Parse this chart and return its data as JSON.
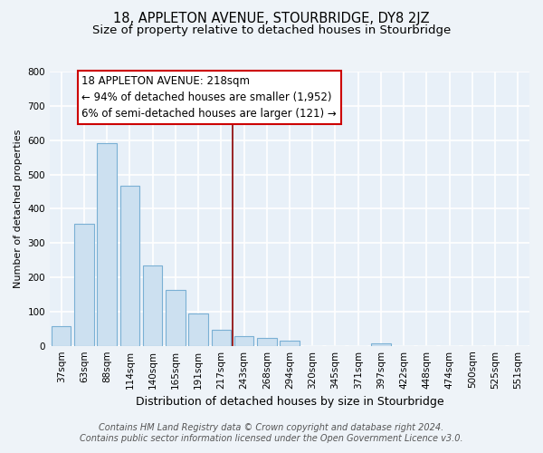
{
  "title": "18, APPLETON AVENUE, STOURBRIDGE, DY8 2JZ",
  "subtitle": "Size of property relative to detached houses in Stourbridge",
  "xlabel": "Distribution of detached houses by size in Stourbridge",
  "ylabel": "Number of detached properties",
  "bar_labels": [
    "37sqm",
    "63sqm",
    "88sqm",
    "114sqm",
    "140sqm",
    "165sqm",
    "191sqm",
    "217sqm",
    "243sqm",
    "268sqm",
    "294sqm",
    "320sqm",
    "345sqm",
    "371sqm",
    "397sqm",
    "422sqm",
    "448sqm",
    "474sqm",
    "500sqm",
    "525sqm",
    "551sqm"
  ],
  "bar_values": [
    58,
    355,
    590,
    468,
    235,
    163,
    95,
    48,
    27,
    22,
    15,
    0,
    0,
    0,
    8,
    0,
    0,
    0,
    0,
    0,
    0
  ],
  "bar_color": "#cce0f0",
  "bar_edge_color": "#7ab0d4",
  "vline_color": "#8b0000",
  "annotation_title": "18 APPLETON AVENUE: 218sqm",
  "annotation_line1": "← 94% of detached houses are smaller (1,952)",
  "annotation_line2": "6% of semi-detached houses are larger (121) →",
  "annotation_box_facecolor": "#ffffff",
  "annotation_box_edgecolor": "#cc0000",
  "ylim": [
    0,
    800
  ],
  "yticks": [
    0,
    100,
    200,
    300,
    400,
    500,
    600,
    700,
    800
  ],
  "footer_line1": "Contains HM Land Registry data © Crown copyright and database right 2024.",
  "footer_line2": "Contains public sector information licensed under the Open Government Licence v3.0.",
  "bg_color": "#eef3f8",
  "plot_bg_color": "#e8f0f8",
  "grid_color": "#ffffff",
  "title_fontsize": 10.5,
  "subtitle_fontsize": 9.5,
  "annotation_fontsize": 8.5,
  "xlabel_fontsize": 9,
  "ylabel_fontsize": 8,
  "tick_fontsize": 7.5,
  "footer_fontsize": 7
}
